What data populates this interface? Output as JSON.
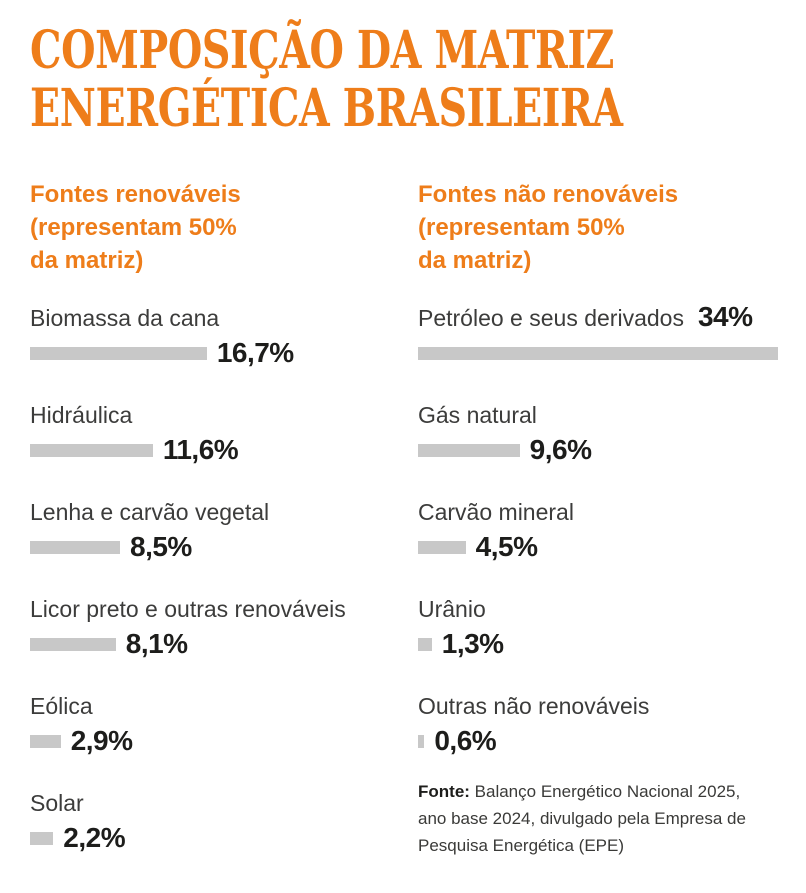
{
  "title": "COMPOSIÇÃO DA MATRIZ\nENERGÉTICA BRASILEIRA",
  "theme": {
    "accent": "#ee7d1a",
    "bar_color": "#c8c8c8",
    "label_color": "#3c3c3b",
    "value_color": "#1d1d1b"
  },
  "chart_data": {
    "type": "bar",
    "orientation": "horizontal",
    "title": "Composição da Matriz Energética Brasileira",
    "unit": "%",
    "bar_scale_max": 34,
    "grid": false,
    "legend_position": "none",
    "groups": [
      {
        "heading": "Fontes renováveis\n(representam 50%\nda matriz)",
        "items": [
          {
            "label": "Biomassa da cana",
            "value": 16.7,
            "value_label": "16,7%",
            "value_inline": false
          },
          {
            "label": "Hidráulica",
            "value": 11.6,
            "value_label": "11,6%",
            "value_inline": false
          },
          {
            "label": "Lenha e carvão vegetal",
            "value": 8.5,
            "value_label": "8,5%",
            "value_inline": false
          },
          {
            "label": "Licor preto e outras renováveis",
            "value": 8.1,
            "value_label": "8,1%",
            "value_inline": false
          },
          {
            "label": "Eólica",
            "value": 2.9,
            "value_label": "2,9%",
            "value_inline": false
          },
          {
            "label": "Solar",
            "value": 2.2,
            "value_label": "2,2%",
            "value_inline": false
          }
        ]
      },
      {
        "heading": "Fontes não renováveis\n(representam 50%\nda matriz)",
        "items": [
          {
            "label": "Petróleo e seus derivados",
            "value": 34,
            "value_label": "34%",
            "value_inline": true
          },
          {
            "label": "Gás natural",
            "value": 9.6,
            "value_label": "9,6%",
            "value_inline": false
          },
          {
            "label": "Carvão mineral",
            "value": 4.5,
            "value_label": "4,5%",
            "value_inline": false
          },
          {
            "label": "Urânio",
            "value": 1.3,
            "value_label": "1,3%",
            "value_inline": false
          },
          {
            "label": "Outras não renováveis",
            "value": 0.6,
            "value_label": "0,6%",
            "value_inline": false
          }
        ]
      }
    ]
  },
  "source": {
    "prefix": "Fonte:",
    "text": " Balanço Energético Nacional 2025,\nano base 2024, divulgado pela Empresa de\nPesquisa Energética (EPE)"
  }
}
